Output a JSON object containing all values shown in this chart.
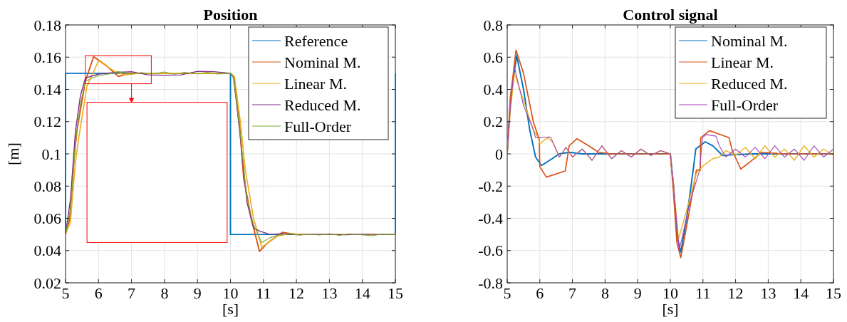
{
  "chart_data": [
    {
      "type": "line",
      "title": "Position",
      "xlabel": "[s]",
      "ylabel": "[m]",
      "xlim": [
        5,
        15
      ],
      "ylim": [
        0.02,
        0.18
      ],
      "xticks": [
        5,
        6,
        7,
        8,
        9,
        10,
        11,
        12,
        13,
        14,
        15
      ],
      "yticks": [
        0.02,
        0.04,
        0.06,
        0.08,
        0.1,
        0.12,
        0.14,
        0.16,
        0.18
      ],
      "grid": true,
      "legend": "top right",
      "line_style": "solid",
      "series": [
        {
          "name": "Reference",
          "color": "#0072bd",
          "x": [
            5,
            5,
            10,
            10,
            15,
            15
          ],
          "values": [
            0.05,
            0.15,
            0.15,
            0.05,
            0.05,
            0.15
          ]
        },
        {
          "name": "Nominal M.",
          "color": "#d95319",
          "x": [
            5,
            5.13,
            5.27,
            5.35,
            5.6,
            5.85,
            6.22,
            6.6,
            6.94,
            7.5,
            10,
            10.09,
            10.27,
            10.4,
            10.63,
            10.88,
            11.14,
            11.57,
            12,
            15
          ],
          "values": [
            0.05,
            0.06,
            0.1,
            0.115,
            0.145,
            0.1603,
            0.155,
            0.148,
            0.15,
            0.15,
            0.15,
            0.148,
            0.12,
            0.085,
            0.06,
            0.0395,
            0.045,
            0.0513,
            0.05,
            0.05
          ]
        },
        {
          "name": "Linear M.",
          "color": "#edb120",
          "x": [
            5,
            5.15,
            5.3,
            5.4,
            5.65,
            6,
            6.5,
            6.8,
            7.2,
            10,
            10.12,
            10.3,
            10.45,
            10.7,
            10.95,
            11.42,
            11.8,
            12.2,
            15
          ],
          "values": [
            0.05,
            0.058,
            0.095,
            0.11,
            0.142,
            0.1578,
            0.151,
            0.149,
            0.15,
            0.15,
            0.148,
            0.12,
            0.09,
            0.06,
            0.042,
            0.049,
            0.0505,
            0.05,
            0.05
          ]
        },
        {
          "name": "Reduced M.",
          "color": "#7e2f8e",
          "x": [
            5,
            5.15,
            5.3,
            5.45,
            5.6,
            6,
            6.5,
            7,
            7.5,
            8,
            8.5,
            9,
            9.5,
            10,
            10.1,
            10.3,
            10.5,
            10.7,
            10.9,
            11.2,
            11.6,
            12,
            12.5,
            13,
            13.5,
            14,
            14.5,
            15
          ],
          "values": [
            0.05,
            0.072,
            0.114,
            0.136,
            0.147,
            0.1495,
            0.1505,
            0.151,
            0.149,
            0.1488,
            0.149,
            0.1512,
            0.151,
            0.15,
            0.147,
            0.11,
            0.07,
            0.054,
            0.052,
            0.05,
            0.0505,
            0.0498,
            0.0502,
            0.05,
            0.0498,
            0.0502,
            0.05,
            0.05
          ]
        },
        {
          "name": "Full-Order",
          "color": "#77ac30",
          "x": [
            5,
            5.15,
            5.3,
            5.45,
            5.6,
            5.8,
            6,
            6.3,
            6.6,
            7,
            7.3,
            7.6,
            8,
            8.3,
            8.6,
            9,
            9.3,
            9.6,
            10,
            10.1,
            10.3,
            10.5,
            10.7,
            10.95,
            11.2,
            11.5,
            11.8,
            12.1,
            12.4,
            12.7,
            13,
            13.3,
            13.6,
            14,
            14.3,
            14.6,
            15
          ],
          "values": [
            0.05,
            0.066,
            0.107,
            0.131,
            0.145,
            0.147,
            0.1485,
            0.1495,
            0.151,
            0.1495,
            0.1505,
            0.1495,
            0.1508,
            0.1494,
            0.1506,
            0.1496,
            0.1507,
            0.1495,
            0.15,
            0.147,
            0.112,
            0.072,
            0.056,
            0.045,
            0.048,
            0.0498,
            0.0505,
            0.0495,
            0.0503,
            0.0496,
            0.0505,
            0.0494,
            0.0504,
            0.0497,
            0.0492,
            0.0503,
            0.05
          ]
        }
      ]
    },
    {
      "type": "line",
      "title": "Control signal",
      "xlabel": "[s]",
      "xlim": [
        5,
        15
      ],
      "ylim": [
        -0.8,
        0.8
      ],
      "xticks": [
        5,
        6,
        7,
        8,
        9,
        10,
        11,
        12,
        13,
        14,
        15
      ],
      "yticks": [
        -0.8,
        -0.6,
        -0.4,
        -0.2,
        0,
        0.2,
        0.4,
        0.6,
        0.8
      ],
      "grid": true,
      "legend": "top right",
      "line_style": "solid",
      "series": [
        {
          "name": "Nominal M.",
          "color": "#0072bd",
          "x": [
            5,
            5.1,
            5.29,
            5.5,
            5.69,
            5.87,
            6.05,
            6.3,
            6.6,
            6.9,
            7.3,
            10,
            10.1,
            10.2,
            10.32,
            10.5,
            10.7,
            10.78,
            11.07,
            11.3,
            11.6,
            12,
            12.5,
            15
          ],
          "values": [
            0,
            0.35,
            0.61,
            0.4,
            0.15,
            -0.02,
            -0.072,
            -0.04,
            0,
            0.01,
            0,
            0,
            -0.2,
            -0.5,
            -0.61,
            -0.4,
            -0.1,
            0.03,
            0.075,
            0.05,
            -0.01,
            -0.005,
            0,
            0
          ]
        },
        {
          "name": "Linear M.",
          "color": "#d95319",
          "x": [
            5,
            5.1,
            5.27,
            5.5,
            5.8,
            5.98,
            6,
            6.2,
            6.78,
            6.9,
            7.14,
            7.5,
            7.8,
            8.2,
            10,
            10.1,
            10.2,
            10.32,
            10.5,
            10.8,
            10.92,
            10.93,
            11.2,
            11.8,
            11.9,
            12.16,
            12.5,
            12.8,
            13.5,
            15
          ],
          "values": [
            0,
            0.35,
            0.644,
            0.5,
            0.2,
            0.09,
            -0.08,
            -0.144,
            -0.106,
            0.05,
            0.094,
            0.05,
            0.01,
            0,
            0,
            -0.25,
            -0.55,
            -0.643,
            -0.45,
            -0.1,
            -0.1,
            0.1,
            0.144,
            0.1,
            0.02,
            -0.094,
            -0.04,
            0.01,
            0,
            0
          ]
        },
        {
          "name": "Reduced M.",
          "color": "#edb120",
          "x": [
            5,
            5.1,
            5.22,
            5.5,
            5.8,
            5.95,
            6,
            6.1,
            6.25,
            6.4,
            6.6,
            6.8,
            7,
            7.3,
            7.6,
            7.9,
            8.2,
            8.5,
            8.8,
            9.1,
            9.4,
            9.7,
            10,
            10.1,
            10.25,
            10.5,
            10.8,
            10.98,
            11.1,
            11.3,
            11.5,
            11.7,
            12,
            12.3,
            12.6,
            12.9,
            13.2,
            13.5,
            13.8,
            14.1,
            14.4,
            14.7,
            15
          ],
          "values": [
            0,
            0.27,
            0.5,
            0.33,
            0.15,
            0.1,
            0.06,
            0.08,
            0.1,
            0.07,
            -0.02,
            0.04,
            -0.02,
            0.03,
            -0.04,
            0.05,
            -0.03,
            0.02,
            -0.02,
            0.03,
            -0.01,
            0.02,
            0,
            -0.2,
            -0.53,
            -0.35,
            -0.12,
            -0.08,
            -0.06,
            -0.03,
            -0.02,
            0.02,
            -0.01,
            0.04,
            -0.03,
            0.05,
            -0.02,
            0.03,
            -0.04,
            0.05,
            -0.02,
            0.03,
            -0.01
          ]
        },
        {
          "name": "Full-Order",
          "color": "#a347b5",
          "x": [
            5,
            5.1,
            5.22,
            5.5,
            5.8,
            5.87,
            6.3,
            6.34,
            6.6,
            6.8,
            7,
            7.3,
            7.6,
            7.9,
            8.2,
            8.5,
            8.8,
            9.1,
            9.4,
            9.7,
            10,
            10.1,
            10.27,
            10.6,
            10.9,
            10.98,
            11.1,
            11.4,
            11.5,
            11.7,
            12,
            12.3,
            12.6,
            12.9,
            13.2,
            13.5,
            13.8,
            14.1,
            14.4,
            14.7,
            15
          ],
          "values": [
            0,
            0.3,
            0.54,
            0.3,
            0.15,
            0.1,
            0.105,
            0.1,
            -0.02,
            0.04,
            -0.02,
            0.03,
            -0.04,
            0.05,
            -0.03,
            0.02,
            -0.02,
            0.03,
            -0.01,
            0.02,
            0,
            -0.2,
            -0.6,
            -0.3,
            -0.1,
            0.1,
            0.12,
            0.11,
            0.05,
            -0.02,
            0.03,
            -0.02,
            0.04,
            -0.03,
            0.05,
            -0.02,
            0.03,
            -0.04,
            0.05,
            -0.02,
            0.03
          ]
        }
      ]
    }
  ]
}
